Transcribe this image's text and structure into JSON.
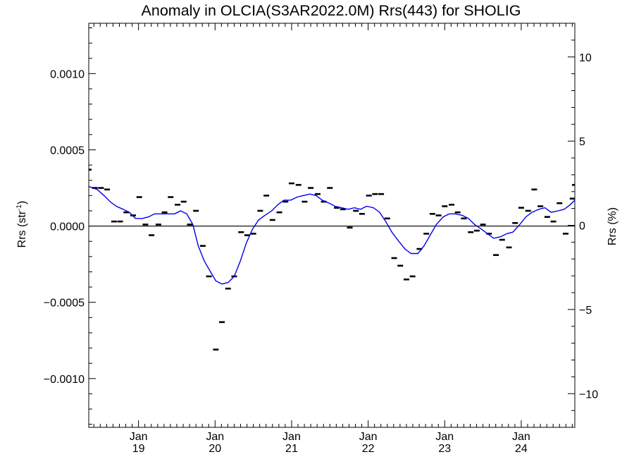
{
  "chart_data": {
    "type": "line",
    "title": "Anomaly in OLCIA(S3AR2022.0M) Rrs(443) for SHOLIG",
    "ylabel_left": {
      "base": "Rrs (str",
      "sup": "-1",
      "close": ")"
    },
    "ylabel_right": "Rrs (%)",
    "xlim": [
      2018.35,
      2024.7
    ],
    "ylim_left": [
      -0.00132,
      0.00133
    ],
    "ylim_right": [
      -12,
      12
    ],
    "x_ticks": [
      {
        "x": 2019.0,
        "month": "Jan",
        "year": "19"
      },
      {
        "x": 2020.0,
        "month": "Jan",
        "year": "20"
      },
      {
        "x": 2021.0,
        "month": "Jan",
        "year": "21"
      },
      {
        "x": 2022.0,
        "month": "Jan",
        "year": "22"
      },
      {
        "x": 2023.0,
        "month": "Jan",
        "year": "23"
      },
      {
        "x": 2024.0,
        "month": "Jan",
        "year": "24"
      }
    ],
    "y_ticks_left": [
      {
        "value": 0.001,
        "label": "0.0010"
      },
      {
        "value": 0.0005,
        "label": "0.0005"
      },
      {
        "value": 0.0,
        "label": "0.0000"
      },
      {
        "value": -0.0005,
        "label": "−0.0005"
      },
      {
        "value": -0.001,
        "label": "−0.0010"
      }
    ],
    "y_ticks_right": [
      {
        "value": 10,
        "label": "10"
      },
      {
        "value": 5,
        "label": "5"
      },
      {
        "value": 0,
        "label": "0"
      },
      {
        "value": -5,
        "label": "−5"
      },
      {
        "value": -10,
        "label": "−10"
      }
    ],
    "zero_line": 0.0,
    "series": [
      {
        "style": "dash-marker",
        "color": "#000000",
        "points": [
          [
            2018.35,
            0.00037
          ],
          [
            2018.43,
            0.00025
          ],
          [
            2018.51,
            0.00025
          ],
          [
            2018.59,
            0.00024
          ],
          [
            2018.68,
            3e-05
          ],
          [
            2018.76,
            3e-05
          ],
          [
            2018.84,
            9e-05
          ],
          [
            2018.93,
            7e-05
          ],
          [
            2019.01,
            0.00019
          ],
          [
            2019.09,
            1e-05
          ],
          [
            2019.17,
            -6e-05
          ],
          [
            2019.26,
            1e-05
          ],
          [
            2019.34,
            9e-05
          ],
          [
            2019.42,
            0.00019
          ],
          [
            2019.51,
            0.00014
          ],
          [
            2019.59,
            0.00016
          ],
          [
            2019.67,
            1e-05
          ],
          [
            2019.75,
            0.0001
          ],
          [
            2019.84,
            -0.00013
          ],
          [
            2019.92,
            -0.00033
          ],
          [
            2020.01,
            -0.00081
          ],
          [
            2020.09,
            -0.00063
          ],
          [
            2020.17,
            -0.00041
          ],
          [
            2020.25,
            -0.00033
          ],
          [
            2020.34,
            -4e-05
          ],
          [
            2020.42,
            -6e-05
          ],
          [
            2020.5,
            -5e-05
          ],
          [
            2020.59,
            0.0001
          ],
          [
            2020.67,
            0.0002
          ],
          [
            2020.75,
            4e-05
          ],
          [
            2020.84,
            9e-05
          ],
          [
            2020.92,
            0.00016
          ],
          [
            2021.0,
            0.00028
          ],
          [
            2021.09,
            0.00027
          ],
          [
            2021.17,
            0.00016
          ],
          [
            2021.25,
            0.00025
          ],
          [
            2021.34,
            0.00021
          ],
          [
            2021.42,
            0.00016
          ],
          [
            2021.5,
            0.00025
          ],
          [
            2021.59,
            0.00012
          ],
          [
            2021.67,
            0.00011
          ],
          [
            2021.76,
            -1e-05
          ],
          [
            2021.84,
            0.0001
          ],
          [
            2021.92,
            8e-05
          ],
          [
            2022.01,
            0.0002
          ],
          [
            2022.09,
            0.00021
          ],
          [
            2022.17,
            0.00021
          ],
          [
            2022.25,
            5e-05
          ],
          [
            2022.34,
            -0.00021
          ],
          [
            2022.42,
            -0.00026
          ],
          [
            2022.5,
            -0.00035
          ],
          [
            2022.58,
            -0.00033
          ],
          [
            2022.67,
            -0.00015
          ],
          [
            2022.76,
            -5e-05
          ],
          [
            2022.84,
            8e-05
          ],
          [
            2022.92,
            7e-05
          ],
          [
            2023.0,
            0.00013
          ],
          [
            2023.09,
            0.00014
          ],
          [
            2023.17,
            9e-05
          ],
          [
            2023.25,
            5e-05
          ],
          [
            2023.34,
            -4e-05
          ],
          [
            2023.42,
            -3e-05
          ],
          [
            2023.5,
            1e-05
          ],
          [
            2023.58,
            -5e-05
          ],
          [
            2023.67,
            -0.00019
          ],
          [
            2023.75,
            -9e-05
          ],
          [
            2023.84,
            -0.00014
          ],
          [
            2023.92,
            2e-05
          ],
          [
            2024.0,
            0.00012
          ],
          [
            2024.09,
            0.0001
          ],
          [
            2024.17,
            0.00024
          ],
          [
            2024.25,
            0.00013
          ],
          [
            2024.34,
            6e-05
          ],
          [
            2024.42,
            3e-05
          ],
          [
            2024.5,
            0.00015
          ],
          [
            2024.58,
            -5e-05
          ],
          [
            2024.67,
            0.00018
          ],
          [
            2024.7,
            0.00027
          ]
        ]
      },
      {
        "style": "line",
        "color": "#0000ee",
        "points": [
          [
            2018.35,
            0.00026
          ],
          [
            2018.46,
            0.00024
          ],
          [
            2018.55,
            0.0002
          ],
          [
            2018.63,
            0.00016
          ],
          [
            2018.71,
            0.00013
          ],
          [
            2018.8,
            0.00011
          ],
          [
            2018.88,
            9e-05
          ],
          [
            2018.96,
            5e-05
          ],
          [
            2019.05,
            5e-05
          ],
          [
            2019.13,
            6e-05
          ],
          [
            2019.21,
            8e-05
          ],
          [
            2019.3,
            8e-05
          ],
          [
            2019.38,
            8e-05
          ],
          [
            2019.47,
            8e-05
          ],
          [
            2019.55,
            0.0001
          ],
          [
            2019.63,
            8e-05
          ],
          [
            2019.71,
            1e-05
          ],
          [
            2019.78,
            -0.00013
          ],
          [
            2019.86,
            -0.00023
          ],
          [
            2019.94,
            -0.0003
          ],
          [
            2020.01,
            -0.00036
          ],
          [
            2020.09,
            -0.00038
          ],
          [
            2020.17,
            -0.00037
          ],
          [
            2020.25,
            -0.00033
          ],
          [
            2020.33,
            -0.00023
          ],
          [
            2020.41,
            -0.00011
          ],
          [
            2020.49,
            -2e-05
          ],
          [
            2020.57,
            4e-05
          ],
          [
            2020.65,
            7e-05
          ],
          [
            2020.74,
            0.0001
          ],
          [
            2020.82,
            0.00014
          ],
          [
            2020.9,
            0.00017
          ],
          [
            2020.99,
            0.00017
          ],
          [
            2021.07,
            0.00019
          ],
          [
            2021.15,
            0.0002
          ],
          [
            2021.24,
            0.00021
          ],
          [
            2021.32,
            0.0002
          ],
          [
            2021.4,
            0.00017
          ],
          [
            2021.49,
            0.00015
          ],
          [
            2021.57,
            0.00013
          ],
          [
            2021.65,
            0.00012
          ],
          [
            2021.74,
            0.00011
          ],
          [
            2021.82,
            0.00012
          ],
          [
            2021.9,
            0.00011
          ],
          [
            2021.98,
            0.00013
          ],
          [
            2022.07,
            0.00012
          ],
          [
            2022.15,
            9e-05
          ],
          [
            2022.23,
            3e-05
          ],
          [
            2022.31,
            -4e-05
          ],
          [
            2022.4,
            -0.0001
          ],
          [
            2022.48,
            -0.00015
          ],
          [
            2022.56,
            -0.00018
          ],
          [
            2022.65,
            -0.00018
          ],
          [
            2022.73,
            -0.00013
          ],
          [
            2022.81,
            -6e-05
          ],
          [
            2022.89,
            1e-05
          ],
          [
            2022.98,
            6e-05
          ],
          [
            2023.06,
            8e-05
          ],
          [
            2023.14,
            8e-05
          ],
          [
            2023.23,
            7e-05
          ],
          [
            2023.31,
            5e-05
          ],
          [
            2023.39,
            1e-05
          ],
          [
            2023.48,
            -2e-05
          ],
          [
            2023.56,
            -5e-05
          ],
          [
            2023.64,
            -8e-05
          ],
          [
            2023.73,
            -7e-05
          ],
          [
            2023.81,
            -5e-05
          ],
          [
            2023.89,
            -4e-05
          ],
          [
            2023.98,
            1e-05
          ],
          [
            2024.06,
            6e-05
          ],
          [
            2024.14,
            9e-05
          ],
          [
            2024.23,
            0.00011
          ],
          [
            2024.31,
            0.00012
          ],
          [
            2024.39,
            9e-05
          ],
          [
            2024.48,
            0.0001
          ],
          [
            2024.56,
            0.00011
          ],
          [
            2024.64,
            0.00014
          ],
          [
            2024.7,
            0.00017
          ]
        ]
      }
    ]
  }
}
